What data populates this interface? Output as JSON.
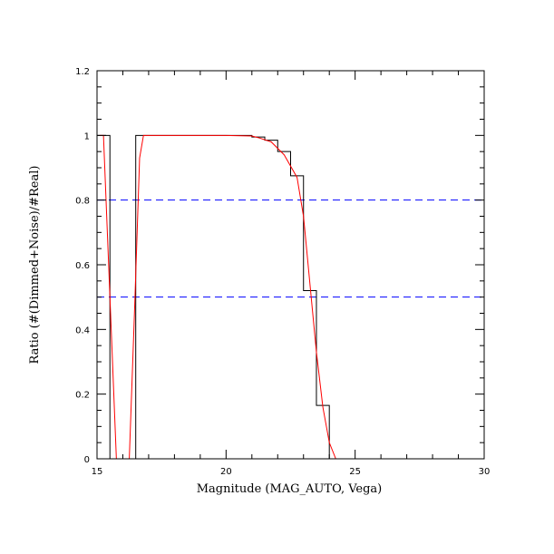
{
  "chart_data": {
    "type": "line",
    "title": "",
    "xlabel": "Magnitude (MAG_AUTO, Vega)",
    "ylabel": "Ratio (#(Dimmed+Noise)/#Real)",
    "xlim": [
      15,
      30
    ],
    "ylim": [
      0,
      1.2
    ],
    "xticks": [
      "15",
      "20",
      "25",
      "30"
    ],
    "yticks": [
      "0",
      "0.2",
      "0.4",
      "0.6",
      "0.8",
      "1",
      "1.2"
    ],
    "grid": false,
    "legend": "none",
    "series": [
      {
        "kind": "step",
        "color": "#000000",
        "x": [
          15.0,
          15.5,
          15.5,
          15.75,
          15.75,
          16.5,
          16.5,
          21.0,
          21.0,
          21.5,
          21.5,
          22.0,
          22.0,
          22.5,
          22.5,
          23.0,
          23.0,
          23.5,
          23.5,
          24.0,
          24.0
        ],
        "y": [
          1.0,
          1.0,
          0.0,
          0.0,
          0.0,
          0.0,
          1.0,
          1.0,
          0.995,
          0.995,
          0.985,
          0.985,
          0.95,
          0.95,
          0.875,
          0.875,
          0.52,
          0.52,
          0.165,
          0.165,
          0.0
        ]
      },
      {
        "kind": "line",
        "color": "#ff0000",
        "x": [
          15.1,
          15.25,
          15.75,
          15.9,
          16.25,
          16.45,
          16.65,
          16.8,
          17.0,
          20.0,
          21.0,
          21.25,
          21.75,
          22.25,
          22.75,
          23.0,
          23.25,
          23.5,
          23.75,
          24.0,
          24.25,
          25.0,
          30.0
        ],
        "y": [
          1.0,
          1.0,
          0.0,
          0.0,
          0.0,
          0.45,
          0.93,
          1.0,
          1.0,
          1.0,
          0.998,
          0.993,
          0.98,
          0.94,
          0.87,
          0.75,
          0.54,
          0.33,
          0.16,
          0.05,
          0.0,
          0.0,
          0.0
        ]
      }
    ],
    "reference_lines": [
      {
        "axis": "y",
        "value": 0.8,
        "color": "#0000ff",
        "style": "dashed"
      },
      {
        "axis": "y",
        "value": 0.5,
        "color": "#0000ff",
        "style": "dashed"
      }
    ]
  }
}
